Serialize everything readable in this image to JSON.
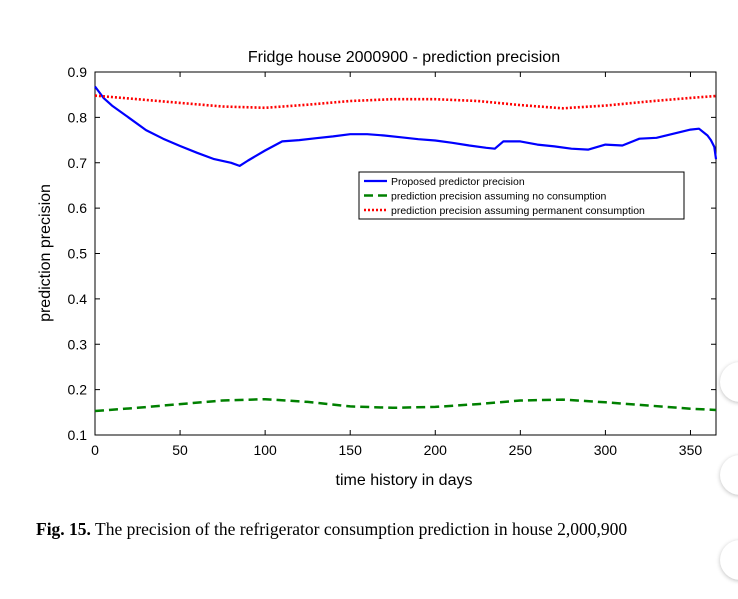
{
  "caption": {
    "label": "Fig. 15.",
    "text": "The precision of the refrigerator consumption prediction in house 2,000,900"
  },
  "chart_data": {
    "type": "line",
    "title": "Fridge house 2000900 - prediction precision",
    "xlabel": "time history in days",
    "ylabel": "prediction precision",
    "xlim": [
      0,
      365
    ],
    "ylim": [
      0.1,
      0.9
    ],
    "xticks": [
      0,
      50,
      100,
      150,
      200,
      250,
      300,
      350
    ],
    "xtick_labels": [
      "0",
      "50",
      "100",
      "150",
      "200",
      "250",
      "300",
      "350"
    ],
    "yticks": [
      0.1,
      0.2,
      0.3,
      0.4,
      0.5,
      0.6,
      0.7,
      0.8,
      0.9
    ],
    "ytick_labels": [
      "0.1",
      "0.2",
      "0.3",
      "0.4",
      "0.5",
      "0.6",
      "0.7",
      "0.8",
      "0.9"
    ],
    "grid": false,
    "legend_position": "center-right",
    "series": [
      {
        "name": "Proposed predictor precision",
        "color": "#0000ff",
        "style": "solid",
        "x": [
          0,
          5,
          10,
          20,
          30,
          40,
          50,
          60,
          70,
          80,
          85,
          90,
          100,
          110,
          120,
          130,
          140,
          150,
          160,
          170,
          180,
          190,
          200,
          210,
          220,
          230,
          235,
          240,
          250,
          260,
          270,
          280,
          290,
          300,
          310,
          320,
          330,
          340,
          350,
          355,
          360,
          362,
          364,
          365
        ],
        "y": [
          0.868,
          0.843,
          0.826,
          0.799,
          0.772,
          0.753,
          0.737,
          0.722,
          0.708,
          0.7,
          0.693,
          0.705,
          0.727,
          0.747,
          0.75,
          0.754,
          0.758,
          0.763,
          0.763,
          0.76,
          0.756,
          0.752,
          0.749,
          0.744,
          0.738,
          0.733,
          0.731,
          0.747,
          0.747,
          0.74,
          0.736,
          0.731,
          0.729,
          0.74,
          0.738,
          0.753,
          0.755,
          0.764,
          0.773,
          0.775,
          0.76,
          0.75,
          0.735,
          0.708
        ]
      },
      {
        "name": "prediction precision assuming no consumption",
        "color": "#008000",
        "style": "dashed",
        "x": [
          0,
          25,
          50,
          75,
          100,
          125,
          150,
          175,
          200,
          225,
          250,
          275,
          300,
          325,
          350,
          365
        ],
        "y": [
          0.153,
          0.16,
          0.168,
          0.176,
          0.179,
          0.173,
          0.163,
          0.16,
          0.162,
          0.168,
          0.176,
          0.178,
          0.172,
          0.165,
          0.158,
          0.155
        ]
      },
      {
        "name": "prediction precision assuming permanent consumption",
        "color": "#ff0000",
        "style": "dotted",
        "x": [
          0,
          25,
          50,
          75,
          100,
          125,
          150,
          175,
          200,
          225,
          250,
          275,
          300,
          325,
          350,
          365
        ],
        "y": [
          0.848,
          0.84,
          0.832,
          0.824,
          0.821,
          0.828,
          0.836,
          0.84,
          0.84,
          0.836,
          0.827,
          0.82,
          0.826,
          0.835,
          0.843,
          0.847
        ]
      }
    ]
  }
}
